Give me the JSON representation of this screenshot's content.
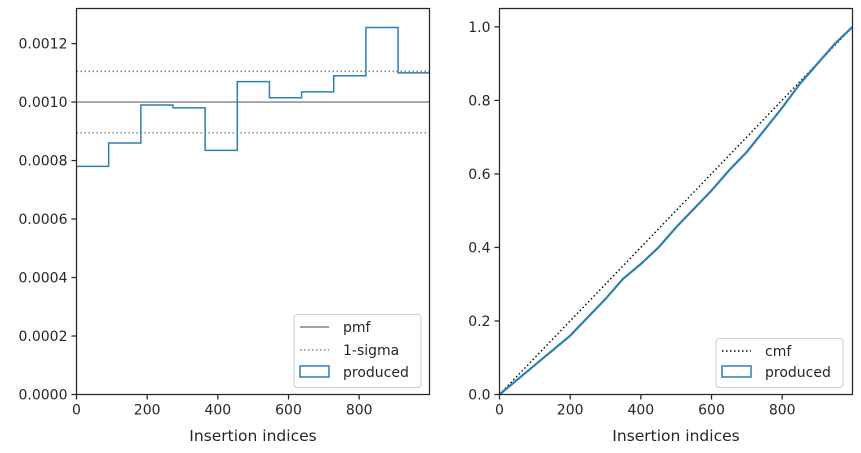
{
  "chart_data": [
    {
      "type": "line",
      "xlabel": "Insertion indices",
      "ylabel": "",
      "xlim": [
        0,
        999
      ],
      "ylim": [
        0,
        0.00132
      ],
      "x_ticks": [
        0,
        200,
        400,
        600,
        800
      ],
      "x_tick_labels": [
        "0",
        "200",
        "400",
        "600",
        "800"
      ],
      "y_ticks": [
        0,
        0.0002,
        0.0004,
        0.0006,
        0.0008,
        0.001,
        0.0012
      ],
      "y_tick_labels": [
        "0.0000",
        "0.0002",
        "0.0004",
        "0.0006",
        "0.0008",
        "0.0010",
        "0.0012"
      ],
      "legend_position": "lower right",
      "grid": false,
      "series": [
        {
          "name": "pmf",
          "style": "solid",
          "color": "#808080",
          "x": [
            0,
            999
          ],
          "y": [
            0.001,
            0.001
          ]
        },
        {
          "name": "1-sigma",
          "style": "dotted",
          "color": "#808080",
          "x": [
            0,
            999
          ],
          "y": [
            0.001105,
            0.001105
          ],
          "y2": [
            0.000895,
            0.000895
          ]
        },
        {
          "name": "produced",
          "style": "step",
          "color": "#2e7fb3",
          "bin_edges": [
            0,
            91,
            182,
            273,
            364,
            455,
            546,
            637,
            728,
            819,
            910,
            999
          ],
          "values": [
            0.00078,
            0.00086,
            0.00099,
            0.00098,
            0.000835,
            0.00107,
            0.001015,
            0.001035,
            0.00109,
            0.001255,
            0.0011
          ]
        }
      ]
    },
    {
      "type": "line",
      "xlabel": "Insertion indices",
      "ylabel": "",
      "xlim": [
        0,
        999
      ],
      "ylim": [
        0,
        1.05
      ],
      "x_ticks": [
        0,
        200,
        400,
        600,
        800
      ],
      "x_tick_labels": [
        "0",
        "200",
        "400",
        "600",
        "800"
      ],
      "y_ticks": [
        0,
        0.2,
        0.4,
        0.6,
        0.8,
        1.0
      ],
      "y_tick_labels": [
        "0.0",
        "0.2",
        "0.4",
        "0.6",
        "0.8",
        "1.0"
      ],
      "legend_position": "lower right",
      "grid": false,
      "series": [
        {
          "name": "cmf",
          "style": "dotted",
          "color": "#000000",
          "x": [
            0,
            999
          ],
          "y": [
            0,
            1.0
          ]
        },
        {
          "name": "produced",
          "style": "line",
          "color": "#2e7fb3",
          "x": [
            0,
            50,
            100,
            150,
            200,
            250,
            300,
            350,
            400,
            450,
            500,
            550,
            600,
            650,
            700,
            750,
            800,
            850,
            900,
            950,
            999
          ],
          "y": [
            0,
            0.04,
            0.08,
            0.12,
            0.16,
            0.21,
            0.26,
            0.315,
            0.355,
            0.4,
            0.455,
            0.505,
            0.555,
            0.61,
            0.66,
            0.72,
            0.78,
            0.845,
            0.9,
            0.955,
            1.0
          ]
        }
      ]
    }
  ]
}
